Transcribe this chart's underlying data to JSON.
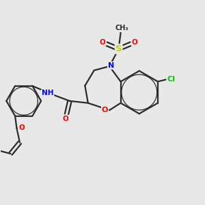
{
  "bg_color": "#e8e8e8",
  "line_color": "#2a2a2a",
  "bond_width": 1.6,
  "atom_colors": {
    "N": "#0000ff",
    "O": "#ff0000",
    "S": "#cccc00",
    "Cl": "#00cc00",
    "C": "#2a2a2a"
  },
  "font_size": 7.5,
  "figsize": [
    3.0,
    3.0
  ],
  "dpi": 100,
  "xlim": [
    0.0,
    10.0
  ],
  "ylim": [
    0.0,
    10.0
  ]
}
